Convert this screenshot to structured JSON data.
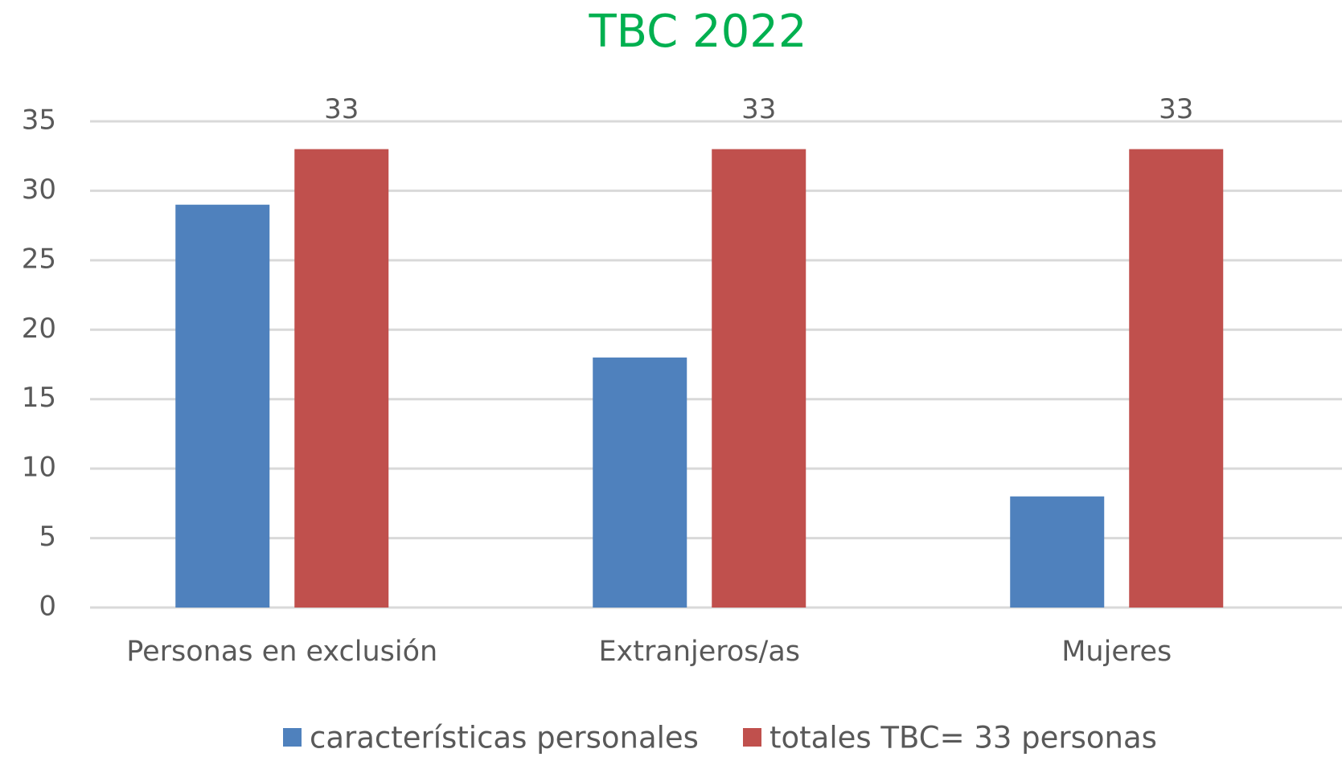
{
  "chart_data": {
    "type": "bar",
    "title": "TBC 2022",
    "categories": [
      "Personas en exclusión",
      "Extranjeros/as",
      "Mujeres"
    ],
    "series": [
      {
        "name": "características personales",
        "color": "#4f81bd",
        "values": [
          29,
          18,
          8
        ]
      },
      {
        "name": "totales TBC= 33 personas",
        "color": "#c0504d",
        "values": [
          33,
          33,
          33
        ],
        "data_labels": true
      }
    ],
    "ylim": [
      0,
      35
    ],
    "yticks": [
      0,
      5,
      10,
      15,
      20,
      25,
      30,
      35
    ],
    "grid": true,
    "title_color": "#00b050",
    "legend": "bottom"
  }
}
